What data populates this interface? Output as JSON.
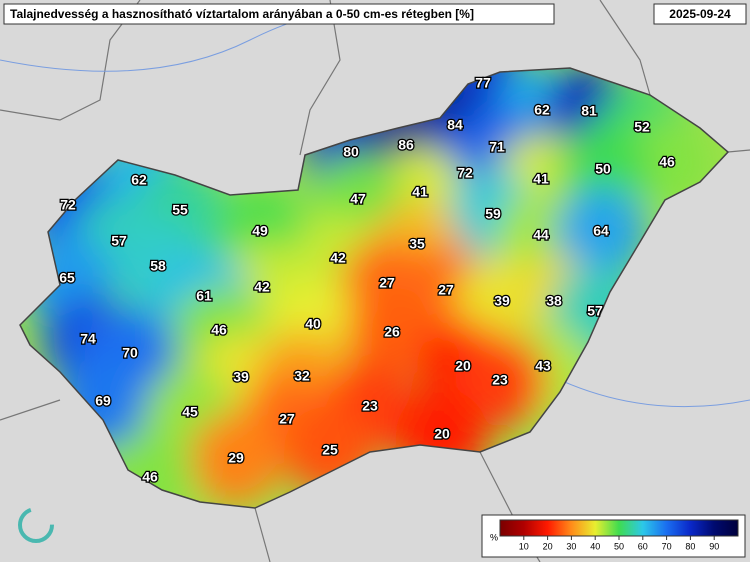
{
  "header": {
    "title": "Talajnedvesség a hasznosítható víztartalom arányában a 0-50 cm-es rétegben [%]",
    "date": "2025-09-24"
  },
  "stations": [
    77,
    62,
    81,
    84,
    52,
    80,
    86,
    71,
    46,
    62,
    72,
    41,
    50,
    72,
    55,
    41,
    47,
    59,
    57,
    49,
    44,
    64,
    35,
    42,
    58,
    65,
    27,
    27,
    42,
    61,
    39,
    38,
    57,
    46,
    40,
    26,
    74,
    70,
    20,
    43,
    23,
    39,
    32,
    23,
    69,
    45,
    27,
    20,
    25,
    29,
    46
  ],
  "colorbar": {
    "label": "%",
    "range": [
      0,
      100
    ],
    "ticks": [
      10,
      20,
      30,
      40,
      50,
      60,
      70,
      80,
      90
    ],
    "stops": [
      [
        0,
        "#7a0000"
      ],
      [
        10,
        "#b00000"
      ],
      [
        20,
        "#ff1a00"
      ],
      [
        30,
        "#ff8c1a"
      ],
      [
        40,
        "#e8ee30"
      ],
      [
        50,
        "#3fdc50"
      ],
      [
        60,
        "#2cc8e8"
      ],
      [
        70,
        "#1a6ef0"
      ],
      [
        80,
        "#0a28c8"
      ],
      [
        90,
        "#000a70"
      ],
      [
        100,
        "#00003c"
      ]
    ]
  }
}
